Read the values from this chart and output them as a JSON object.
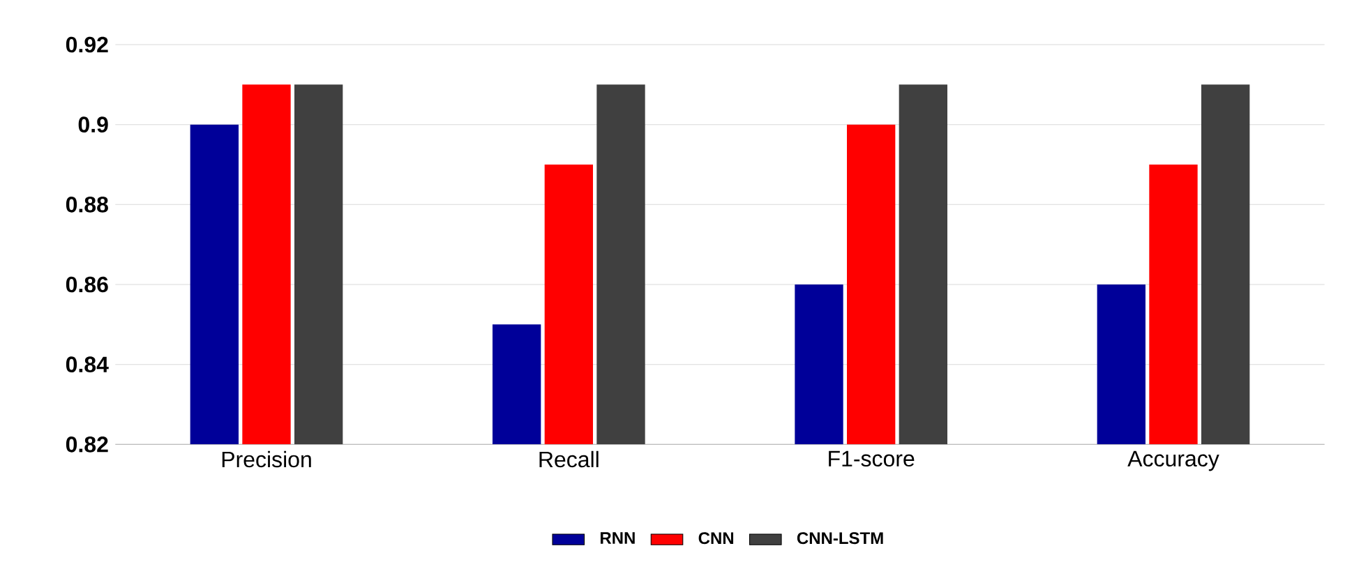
{
  "chart_data": {
    "type": "bar",
    "categories": [
      "Precision",
      "Recall",
      "F1-score",
      "Accuracy"
    ],
    "series": [
      {
        "name": "RNN",
        "color": "#000099",
        "values": [
          0.9,
          0.85,
          0.86,
          0.86
        ]
      },
      {
        "name": "CNN",
        "color": "#ff0000",
        "values": [
          0.91,
          0.89,
          0.9,
          0.89
        ]
      },
      {
        "name": "CNN-LSTM",
        "color": "#404040",
        "values": [
          0.91,
          0.91,
          0.91,
          0.91
        ]
      }
    ],
    "ylim": [
      0.82,
      0.92
    ],
    "yticks": [
      0.82,
      0.84,
      0.86,
      0.88,
      0.9,
      0.92
    ],
    "grid": "y",
    "legend": "bottom"
  }
}
